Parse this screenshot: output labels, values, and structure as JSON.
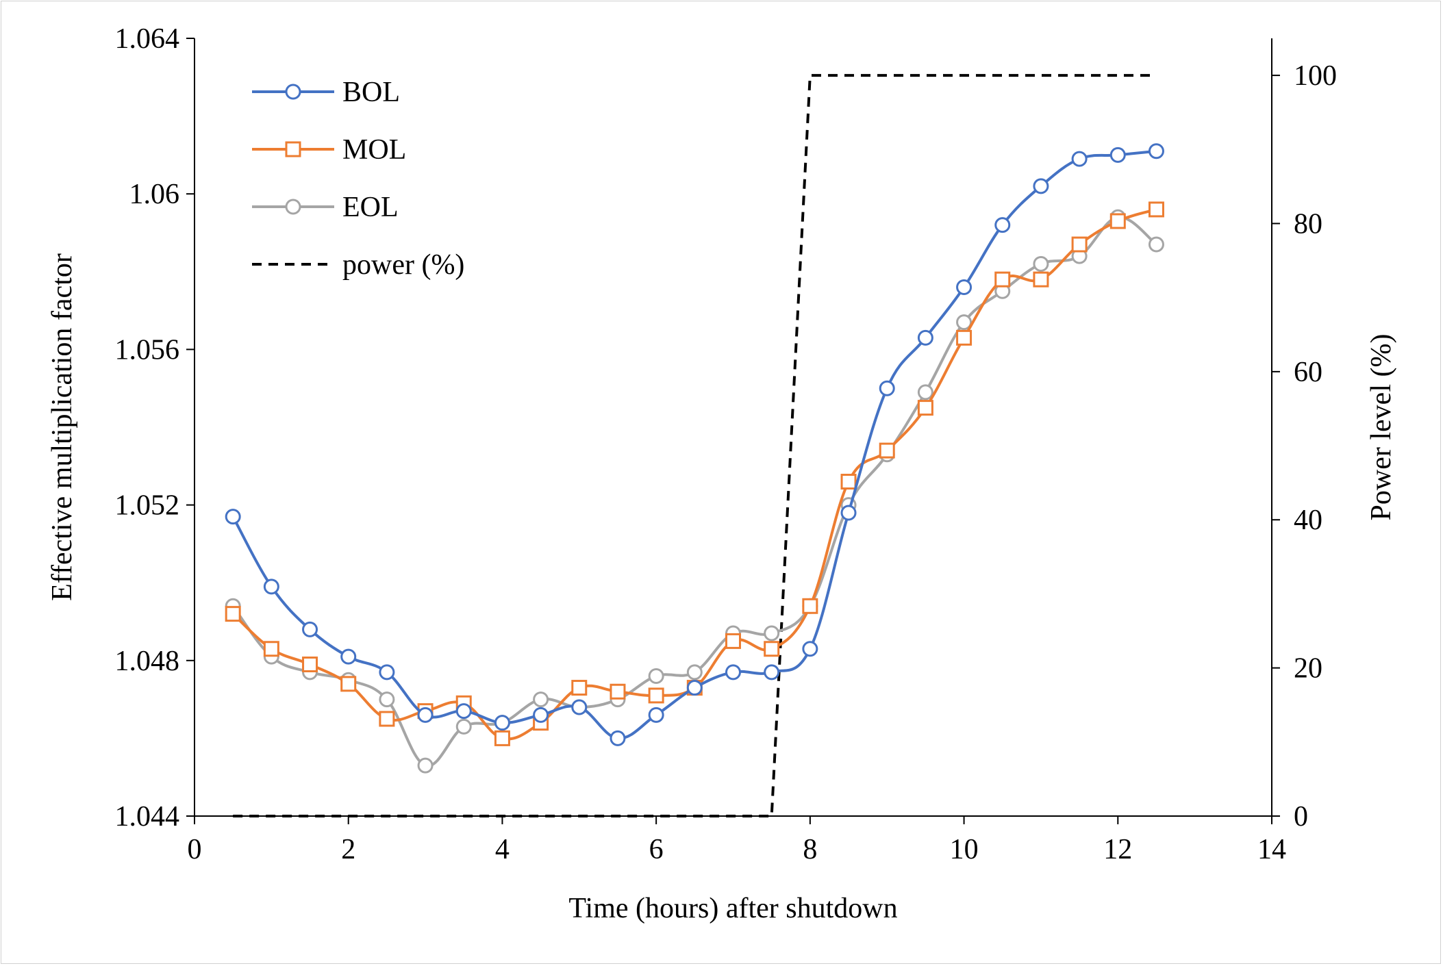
{
  "chart_data": {
    "type": "line",
    "title": "",
    "xlabel": "Time (hours) after shutdown",
    "ylabel": "Effective multiplication factor",
    "y2label": "Power level (%)",
    "xlim": [
      0,
      14
    ],
    "ylim": [
      1.044,
      1.064
    ],
    "y2lim": [
      0,
      105
    ],
    "x_ticks": [
      "0",
      "2",
      "4",
      "6",
      "8",
      "10",
      "12",
      "14"
    ],
    "x_tick_values": [
      0,
      2,
      4,
      6,
      8,
      10,
      12,
      14
    ],
    "y_ticks": [
      "1.044",
      "1.048",
      "1.052",
      "1.056",
      "1.06",
      "1.064"
    ],
    "y_tick_values": [
      1.044,
      1.048,
      1.052,
      1.056,
      1.06,
      1.064
    ],
    "y2_ticks": [
      "0",
      "20",
      "40",
      "60",
      "80",
      "100"
    ],
    "y2_tick_values": [
      0,
      20,
      40,
      60,
      80,
      100
    ],
    "grid": false,
    "legend_position": "top-left",
    "x": [
      0.5,
      1.0,
      1.5,
      2.0,
      2.5,
      3.0,
      3.5,
      4.0,
      4.5,
      5.0,
      5.5,
      6.0,
      6.5,
      7.0,
      7.5,
      8.0,
      8.5,
      9.0,
      9.5,
      10.0,
      10.5,
      11.0,
      11.5,
      12.0,
      12.5
    ],
    "series": [
      {
        "name": "BOL",
        "axis": "left",
        "color": "#4472c4",
        "marker": "circle",
        "values": [
          1.0517,
          1.0499,
          1.0488,
          1.0481,
          1.0477,
          1.0466,
          1.0467,
          1.0464,
          1.0466,
          1.0468,
          1.046,
          1.0466,
          1.0473,
          1.0477,
          1.0477,
          1.0483,
          1.0518,
          1.055,
          1.0563,
          1.0576,
          1.0592,
          1.0602,
          1.0609,
          1.061,
          1.0611
        ]
      },
      {
        "name": "MOL",
        "axis": "left",
        "color": "#ed7d31",
        "marker": "square",
        "values": [
          1.0492,
          1.0483,
          1.0479,
          1.0474,
          1.0465,
          1.0467,
          1.0469,
          1.046,
          1.0464,
          1.0473,
          1.0472,
          1.0471,
          1.0473,
          1.0485,
          1.0483,
          1.0494,
          1.0526,
          1.0534,
          1.0545,
          1.0563,
          1.0578,
          1.0578,
          1.0587,
          1.0593,
          1.0596
        ]
      },
      {
        "name": "EOL",
        "axis": "left",
        "color": "#a5a5a5",
        "marker": "circle",
        "values": [
          1.0494,
          1.0481,
          1.0477,
          1.0475,
          1.047,
          1.0453,
          1.0463,
          1.0464,
          1.047,
          1.0468,
          1.047,
          1.0476,
          1.0477,
          1.0487,
          1.0487,
          1.0494,
          1.052,
          1.0533,
          1.0549,
          1.0567,
          1.0575,
          1.0582,
          1.0584,
          1.0594,
          1.0587
        ]
      },
      {
        "name": "power (%)",
        "axis": "right",
        "color": "#000000",
        "dashed": true,
        "points": [
          [
            0.5,
            0
          ],
          [
            7.5,
            0
          ],
          [
            8.0,
            100
          ],
          [
            12.5,
            100
          ]
        ]
      }
    ]
  }
}
